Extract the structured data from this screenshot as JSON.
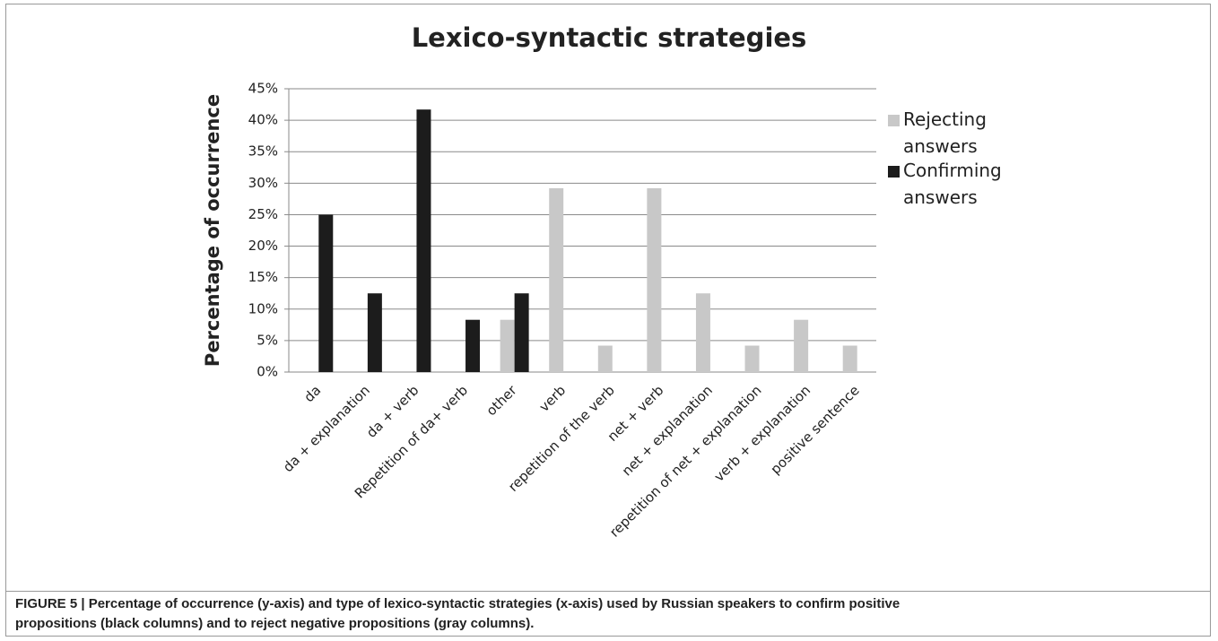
{
  "chart_data": {
    "type": "bar",
    "title": "Lexico-syntactic strategies",
    "ylabel": "Percentage of occurrence",
    "categories": [
      "da",
      "da + explanation",
      "da + verb",
      "Repetition of da+ verb",
      "other",
      "verb",
      "repetition of the verb",
      "net + verb",
      "net + explanation",
      "repetition of net + explanation",
      "verb + explanation",
      "positive sentence"
    ],
    "series": [
      {
        "name": "Rejecting answers",
        "color": "#c8c8c8",
        "values": [
          0,
          0,
          0,
          0,
          8.3,
          29.2,
          4.2,
          29.2,
          12.5,
          4.2,
          8.3,
          4.2
        ]
      },
      {
        "name": "Confirming answers",
        "color": "#1c1c1c",
        "values": [
          25,
          12.5,
          41.7,
          8.3,
          12.5,
          0,
          0,
          0,
          0,
          0,
          0,
          0
        ]
      }
    ],
    "ylim": [
      0,
      45
    ],
    "yticks": [
      {
        "value": 0,
        "label": "0%"
      },
      {
        "value": 5,
        "label": "5%"
      },
      {
        "value": 10,
        "label": "10%"
      },
      {
        "value": 15,
        "label": "15%"
      },
      {
        "value": 20,
        "label": "20%"
      },
      {
        "value": 25,
        "label": "25%"
      },
      {
        "value": 30,
        "label": "30%"
      },
      {
        "value": 35,
        "label": "35%"
      },
      {
        "value": 40,
        "label": "40%"
      },
      {
        "value": 45,
        "label": "45%"
      }
    ],
    "grid": true,
    "legend": "right",
    "caption": "FIGURE 5 | Percentage of occurrence (y-axis) and type of lexico-syntactic strategies (x-axis) used by Russian speakers to confirm positive propositions (black columns) and to reject negative propositions (gray columns)."
  }
}
